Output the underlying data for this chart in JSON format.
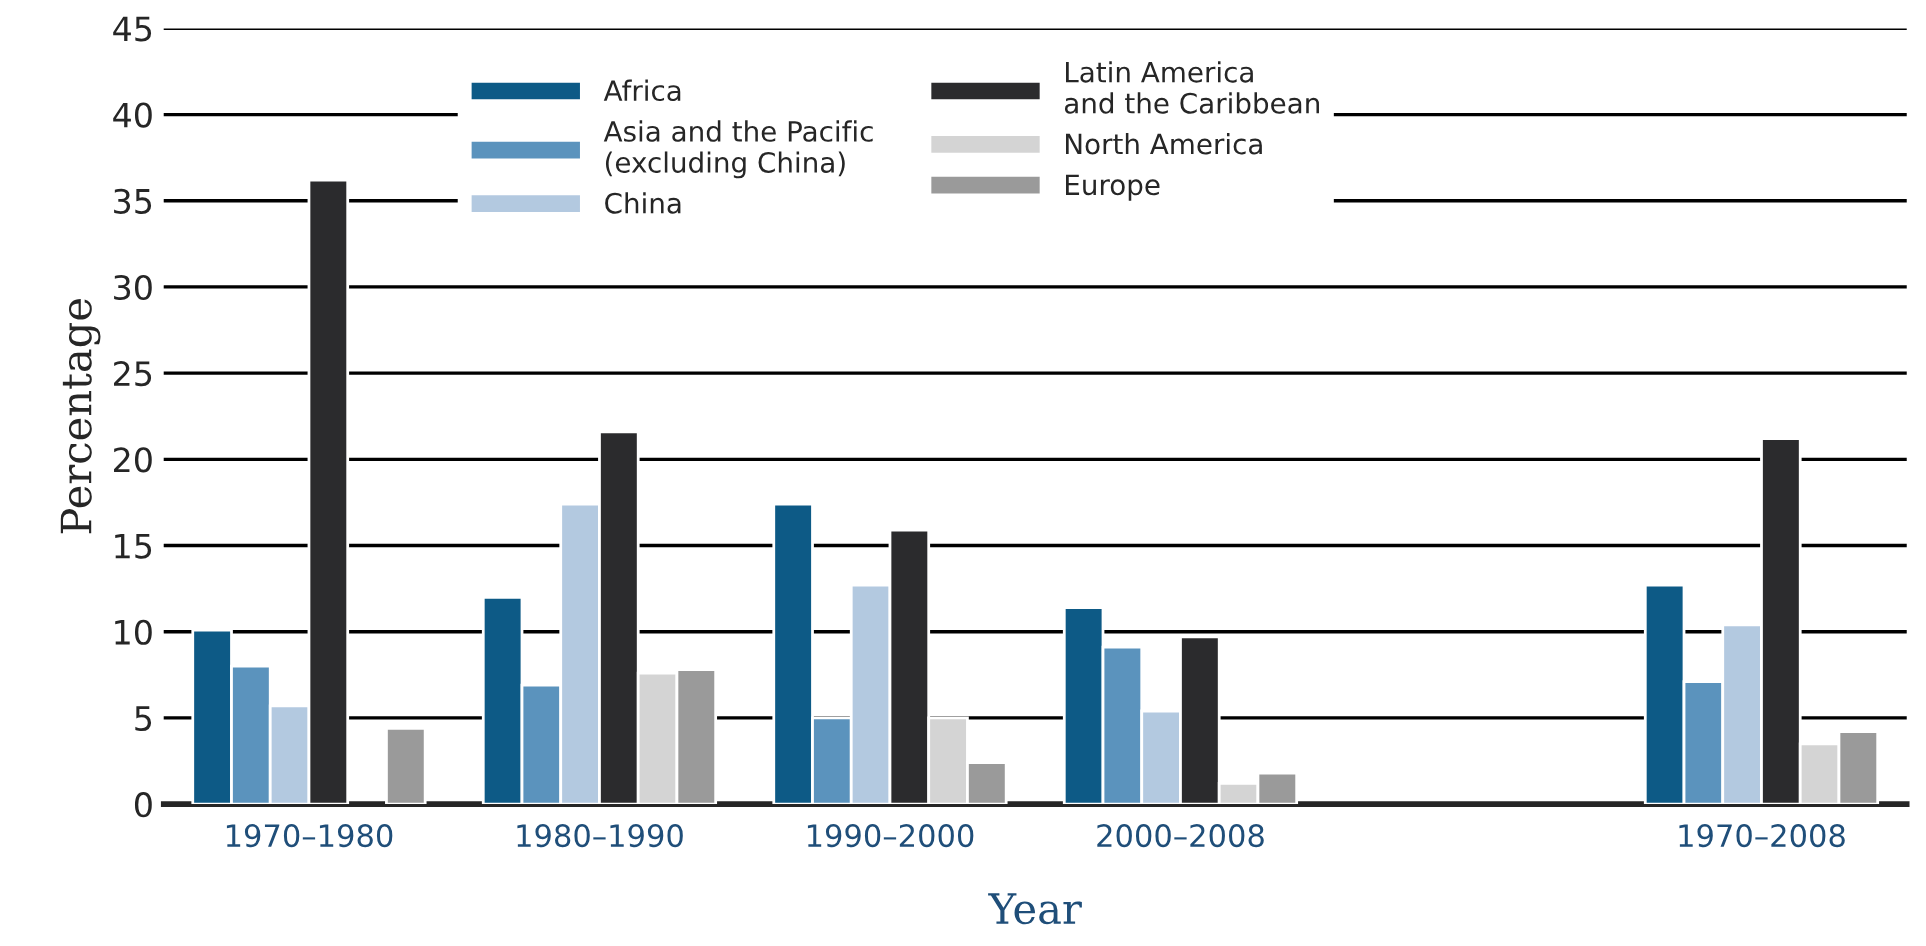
{
  "chart_data": {
    "type": "bar",
    "xlabel": "Year",
    "ylabel": "Percentage",
    "categories": [
      "1970–1980",
      "1980–1990",
      "1990–2000",
      "2000–2008",
      null,
      "1970–2008"
    ],
    "series": [
      {
        "name": "Africa",
        "color": "#0d5a86",
        "values": [
          10.1,
          12.0,
          17.4,
          11.4,
          null,
          12.7
        ]
      },
      {
        "name": "Asia and the Pacific\n(excluding China)",
        "color": "#5b93bd",
        "values": [
          8.0,
          6.9,
          5.0,
          9.1,
          null,
          7.1
        ]
      },
      {
        "name": "China",
        "color": "#b3c9e0",
        "values": [
          5.7,
          17.4,
          12.7,
          5.4,
          null,
          10.4
        ]
      },
      {
        "name": "Latin America\nand the Caribbean",
        "color": "#2b2b2d",
        "values": [
          36.2,
          21.6,
          15.9,
          9.7,
          null,
          21.2
        ]
      },
      {
        "name": "North America",
        "color": "#d4d4d4",
        "values": [
          null,
          7.6,
          5.0,
          1.2,
          null,
          3.5
        ]
      },
      {
        "name": "Europe",
        "color": "#9a9a9a",
        "values": [
          4.4,
          7.8,
          2.4,
          1.8,
          null,
          4.2
        ]
      }
    ],
    "ylim": [
      0,
      45
    ],
    "yticks": [
      0,
      5,
      10,
      15,
      20,
      25,
      30,
      35,
      40,
      45
    ],
    "grid": "y",
    "legend": "top"
  }
}
